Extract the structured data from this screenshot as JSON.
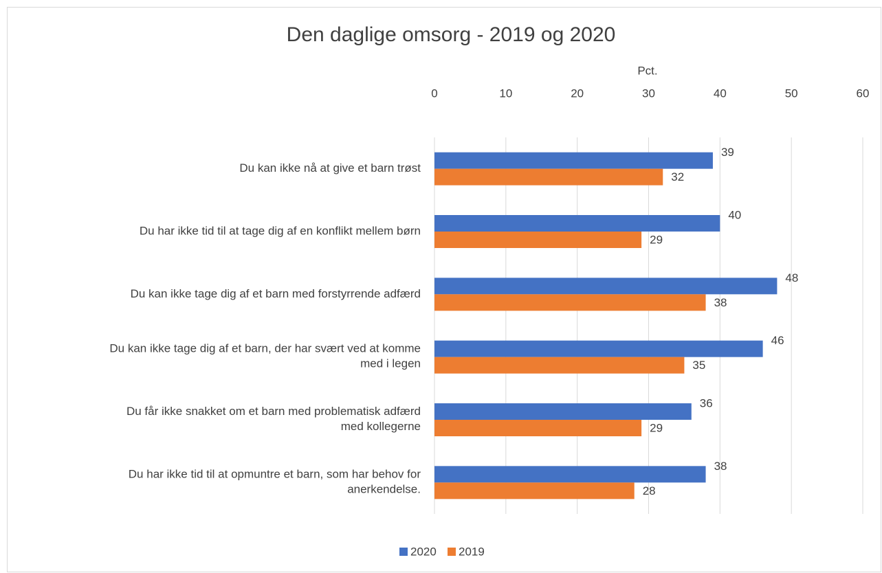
{
  "chart_data": {
    "type": "barh",
    "title": "Den daglige omsorg - 2019 og 2020",
    "xlabel": "Pct.",
    "categories": [
      "Du kan ikke nå at give et barn trøst",
      "Du har ikke tid til at tage dig af en konflikt mellem børn",
      "Du kan ikke tage dig af et barn med forstyrrende adfærd",
      "Du kan ikke tage dig af et barn, der har svært ved at komme\nmed i legen",
      "Du får ikke snakket om et barn med problematisk adfærd\nmed kollegerne",
      "Du har ikke tid til at opmuntre et barn, som har behov for\nanerkendelse."
    ],
    "series": [
      {
        "name": "2020",
        "color": "#4472c4",
        "values": [
          39,
          40,
          48,
          46,
          36,
          38
        ]
      },
      {
        "name": "2019",
        "color": "#ed7d31",
        "values": [
          32,
          29,
          38,
          35,
          29,
          28
        ]
      }
    ],
    "xlim": [
      0,
      60
    ],
    "xticks": [
      0,
      10,
      20,
      30,
      40,
      50,
      60
    ],
    "grid": true,
    "legend": "bottom"
  }
}
